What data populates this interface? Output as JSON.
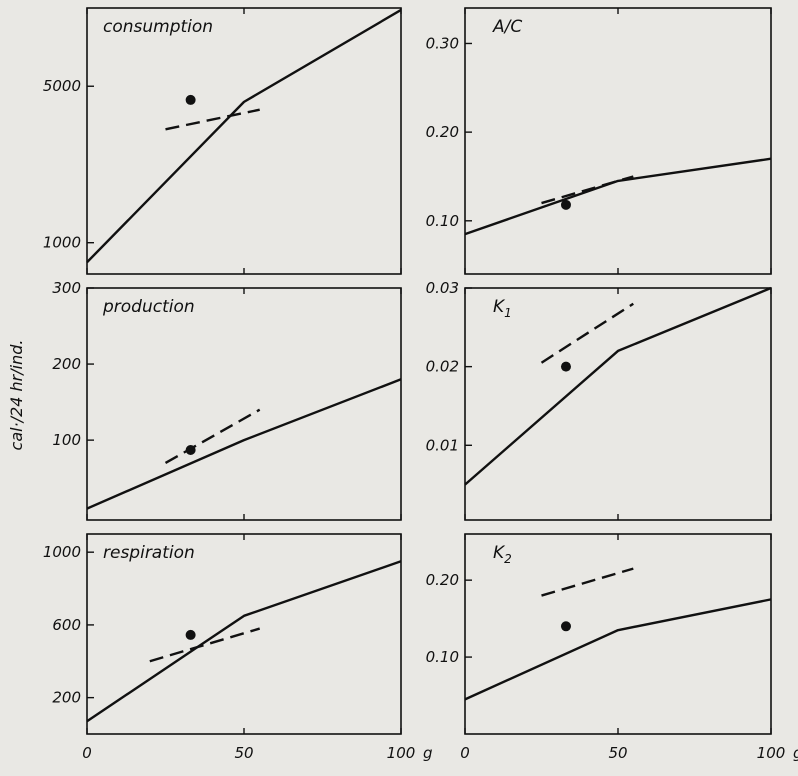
{
  "figure": {
    "ylabel": "cal·/24 hr/ind.",
    "x_unit": "g"
  },
  "chart_data": [
    {
      "id": "consumption",
      "type": "line",
      "title": "consumption",
      "xlim": [
        0,
        100
      ],
      "ylim": [
        200,
        7000
      ],
      "yticks": [
        1000,
        5000
      ],
      "ytick_labels": [
        "1000",
        "5000"
      ],
      "series": [
        {
          "style": "solid",
          "x": [
            0,
            50,
            100
          ],
          "y": [
            500,
            4600,
            6950
          ]
        },
        {
          "style": "dashed",
          "x": [
            25,
            55
          ],
          "y": [
            3900,
            4400
          ]
        }
      ],
      "points": [
        {
          "x": 33,
          "y": 4650
        }
      ]
    },
    {
      "id": "ac",
      "type": "line",
      "title": "A/C",
      "xlim": [
        0,
        100
      ],
      "ylim": [
        0.04,
        0.34
      ],
      "yticks": [
        0.1,
        0.2,
        0.3
      ],
      "ytick_labels": [
        "0.10",
        "0.20",
        "0.30"
      ],
      "series": [
        {
          "style": "solid",
          "x": [
            0,
            50,
            100
          ],
          "y": [
            0.085,
            0.145,
            0.17
          ]
        },
        {
          "style": "dashed",
          "x": [
            25,
            55
          ],
          "y": [
            0.12,
            0.15
          ]
        }
      ],
      "points": [
        {
          "x": 33,
          "y": 0.118
        }
      ]
    },
    {
      "id": "production",
      "type": "line",
      "title": "production",
      "xlim": [
        0,
        100
      ],
      "ylim": [
        -5,
        300
      ],
      "yticks": [
        100,
        200,
        300
      ],
      "ytick_labels": [
        "100",
        "200",
        "300"
      ],
      "series": [
        {
          "style": "solid",
          "x": [
            0,
            50,
            100
          ],
          "y": [
            10,
            100,
            180
          ]
        },
        {
          "style": "dashed",
          "x": [
            25,
            55
          ],
          "y": [
            70,
            140
          ]
        }
      ],
      "points": [
        {
          "x": 33,
          "y": 87
        }
      ]
    },
    {
      "id": "k1",
      "type": "line",
      "title": "K1",
      "xlim": [
        0,
        100
      ],
      "ylim": [
        0.0005,
        0.03
      ],
      "yticks": [
        0.01,
        0.02,
        0.03
      ],
      "ytick_labels": [
        "0.01",
        "0.02",
        "0.03"
      ],
      "series": [
        {
          "style": "solid",
          "x": [
            0,
            50,
            100
          ],
          "y": [
            0.005,
            0.022,
            0.03
          ]
        },
        {
          "style": "dashed",
          "x": [
            25,
            55
          ],
          "y": [
            0.0205,
            0.028
          ]
        }
      ],
      "points": [
        {
          "x": 33,
          "y": 0.02
        }
      ]
    },
    {
      "id": "respiration",
      "type": "line",
      "title": "respiration",
      "xlim": [
        0,
        100
      ],
      "ylim": [
        0,
        1100
      ],
      "yticks": [
        200,
        600,
        1000
      ],
      "ytick_labels": [
        "200",
        "600",
        "1000"
      ],
      "series": [
        {
          "style": "solid",
          "x": [
            0,
            50,
            100
          ],
          "y": [
            70,
            650,
            950
          ]
        },
        {
          "style": "dashed",
          "x": [
            20,
            55
          ],
          "y": [
            400,
            580
          ]
        }
      ],
      "points": [
        {
          "x": 33,
          "y": 545
        }
      ]
    },
    {
      "id": "k2",
      "type": "line",
      "title": "K2",
      "xlim": [
        0,
        100
      ],
      "ylim": [
        0,
        0.26
      ],
      "yticks": [
        0.1,
        0.2
      ],
      "ytick_labels": [
        "0.10",
        "0.20"
      ],
      "series": [
        {
          "style": "solid",
          "x": [
            0,
            50,
            100
          ],
          "y": [
            0.045,
            0.135,
            0.175
          ]
        },
        {
          "style": "dashed",
          "x": [
            25,
            55
          ],
          "y": [
            0.18,
            0.215
          ]
        }
      ],
      "points": [
        {
          "x": 33,
          "y": 0.14
        }
      ]
    }
  ],
  "xaxis": {
    "ticks": [
      0,
      50,
      100
    ],
    "tick_labels": [
      "0",
      "50",
      "100"
    ]
  }
}
